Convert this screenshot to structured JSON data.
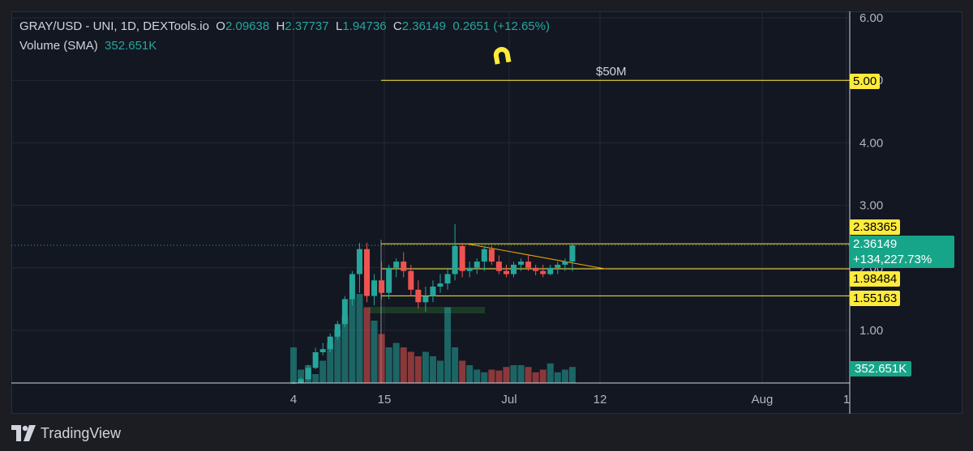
{
  "legend": {
    "symbol": "GRAY/USD - UNI, 1D, DEXTools.io",
    "open_key": "O",
    "open": "2.09638",
    "high_key": "H",
    "high": "2.37737",
    "low_key": "L",
    "low": "1.94736",
    "close_key": "C",
    "close": "2.36149",
    "change": "0.2651 (+12.65%)",
    "volume_name": "Volume (SMA)",
    "volume_value": "352.651K"
  },
  "annotations": {
    "level_text": "$50M",
    "magnet_icon": "magnet-icon"
  },
  "price_labels": {
    "level_5": "5.00",
    "level_2_38": "2.38365",
    "last_price": "2.36149",
    "last_change": "+134,227.73%",
    "level_1_98": "1.98484",
    "level_1_55": "1.55163",
    "volume": "352.651K"
  },
  "footer": {
    "brand": "TradingView",
    "logo_icon": "tradingview-logo-icon"
  },
  "colors": {
    "up": "#26a69a",
    "down": "#ef5350",
    "level": "#ffeb3b",
    "trend": "#f7a600"
  },
  "chart_data": {
    "type": "candlestick",
    "title": "GRAY/USD - UNI, 1D, DEXTools.io",
    "y_ticks": [
      "6.00",
      "5.00",
      "4.00",
      "3.00",
      "2.00",
      "1.00"
    ],
    "x_ticks": [
      "4",
      "15",
      "Jul",
      "12",
      "Aug",
      "1"
    ],
    "ylim": [
      0.15,
      6.2
    ],
    "horizontal_levels": [
      5.0,
      2.38365,
      1.98484,
      1.55163
    ],
    "candles": [
      {
        "o": 0.15,
        "h": 0.18,
        "l": 0.14,
        "c": 0.16
      },
      {
        "o": 0.16,
        "h": 0.25,
        "l": 0.15,
        "c": 0.22
      },
      {
        "o": 0.22,
        "h": 0.45,
        "l": 0.2,
        "c": 0.4
      },
      {
        "o": 0.4,
        "h": 0.72,
        "l": 0.38,
        "c": 0.65
      },
      {
        "o": 0.65,
        "h": 0.8,
        "l": 0.6,
        "c": 0.7
      },
      {
        "o": 0.7,
        "h": 0.95,
        "l": 0.65,
        "c": 0.9
      },
      {
        "o": 0.9,
        "h": 1.15,
        "l": 0.85,
        "c": 1.1
      },
      {
        "o": 1.1,
        "h": 1.55,
        "l": 1.05,
        "c": 1.5
      },
      {
        "o": 1.5,
        "h": 1.95,
        "l": 1.4,
        "c": 1.9
      },
      {
        "o": 1.9,
        "h": 2.4,
        "l": 1.6,
        "c": 2.3
      },
      {
        "o": 2.3,
        "h": 2.4,
        "l": 1.45,
        "c": 1.55
      },
      {
        "o": 1.55,
        "h": 1.9,
        "l": 1.4,
        "c": 1.8
      },
      {
        "o": 1.8,
        "h": 2.1,
        "l": 1.5,
        "c": 1.6
      },
      {
        "o": 1.6,
        "h": 2.05,
        "l": 1.5,
        "c": 2.0
      },
      {
        "o": 2.0,
        "h": 2.15,
        "l": 1.85,
        "c": 2.1
      },
      {
        "o": 2.1,
        "h": 2.25,
        "l": 1.85,
        "c": 1.95
      },
      {
        "o": 1.95,
        "h": 2.05,
        "l": 1.55,
        "c": 1.65
      },
      {
        "o": 1.65,
        "h": 1.8,
        "l": 1.35,
        "c": 1.45
      },
      {
        "o": 1.45,
        "h": 1.7,
        "l": 1.3,
        "c": 1.55
      },
      {
        "o": 1.55,
        "h": 1.8,
        "l": 1.45,
        "c": 1.7
      },
      {
        "o": 1.7,
        "h": 1.9,
        "l": 1.6,
        "c": 1.75
      },
      {
        "o": 1.75,
        "h": 2.0,
        "l": 1.65,
        "c": 1.9
      },
      {
        "o": 1.9,
        "h": 2.7,
        "l": 1.8,
        "c": 2.35
      },
      {
        "o": 2.35,
        "h": 2.4,
        "l": 1.85,
        "c": 1.95
      },
      {
        "o": 1.95,
        "h": 2.1,
        "l": 1.85,
        "c": 2.0
      },
      {
        "o": 2.0,
        "h": 2.15,
        "l": 1.9,
        "c": 2.1
      },
      {
        "o": 2.1,
        "h": 2.35,
        "l": 1.95,
        "c": 2.3
      },
      {
        "o": 2.3,
        "h": 2.35,
        "l": 2.05,
        "c": 2.1
      },
      {
        "o": 2.1,
        "h": 2.2,
        "l": 1.9,
        "c": 1.95
      },
      {
        "o": 1.95,
        "h": 2.05,
        "l": 1.85,
        "c": 1.9
      },
      {
        "o": 1.9,
        "h": 2.1,
        "l": 1.85,
        "c": 2.05
      },
      {
        "o": 2.05,
        "h": 2.15,
        "l": 1.95,
        "c": 2.1
      },
      {
        "o": 2.1,
        "h": 2.2,
        "l": 1.95,
        "c": 2.0
      },
      {
        "o": 2.0,
        "h": 2.05,
        "l": 1.88,
        "c": 1.95
      },
      {
        "o": 1.95,
        "h": 2.05,
        "l": 1.85,
        "c": 1.9
      },
      {
        "o": 1.9,
        "h": 2.05,
        "l": 1.88,
        "c": 2.0
      },
      {
        "o": 2.0,
        "h": 2.1,
        "l": 1.9,
        "c": 2.05
      },
      {
        "o": 2.05,
        "h": 2.15,
        "l": 1.95,
        "c": 2.1
      },
      {
        "o": 2.1,
        "h": 2.38,
        "l": 1.95,
        "c": 2.36
      }
    ],
    "volume": [
      0.4,
      0.15,
      0.2,
      0.1,
      0.25,
      0.45,
      0.6,
      0.75,
      0.95,
      1.0,
      0.85,
      0.7,
      0.55,
      0.4,
      0.45,
      0.4,
      0.35,
      0.3,
      0.35,
      0.3,
      0.25,
      0.85,
      0.4,
      0.25,
      0.2,
      0.15,
      0.12,
      0.15,
      0.14,
      0.18,
      0.2,
      0.2,
      0.18,
      0.12,
      0.15,
      0.22,
      0.12,
      0.15,
      0.18
    ]
  }
}
